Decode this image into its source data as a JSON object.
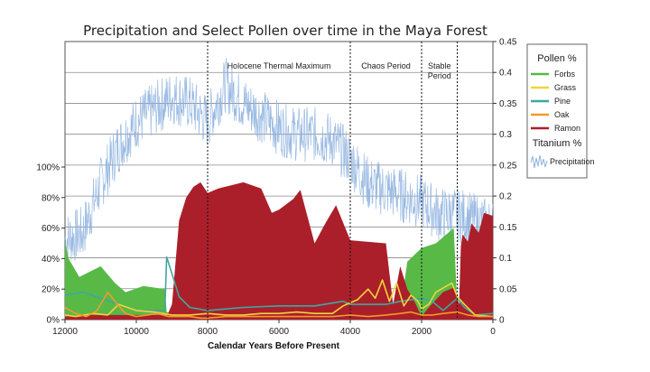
{
  "chart_data": {
    "type": "area",
    "title": "Precipitation and Select Pollen over time in the Maya Forest",
    "xlabel": "Calendar Years Before Present",
    "x_reversed": true,
    "xlim": [
      12000,
      0
    ],
    "x_ticks": [
      12000,
      10000,
      8000,
      6000,
      4000,
      2000,
      0
    ],
    "x_tick_labels": [
      "12000",
      "10000",
      "8000",
      "6000",
      "4000",
      "2000",
      "0"
    ],
    "y_left": {
      "lim": [
        0,
        100
      ],
      "ticks": [
        0,
        20,
        40,
        60,
        80,
        100
      ],
      "tick_labels": [
        "0%",
        "20%",
        "40%",
        "60%",
        "80%",
        "100%"
      ]
    },
    "y_right": {
      "lim": [
        0,
        0.45
      ],
      "ticks": [
        0,
        0.05,
        0.1,
        0.15,
        0.2,
        0.25,
        0.3,
        0.35,
        0.4,
        0.45
      ],
      "tick_labels": [
        "0",
        "0.05",
        "0.1",
        "0.15",
        "0.2",
        "0.25",
        "0.3",
        "0.35",
        "0.4",
        "0.45"
      ]
    },
    "grid": "horizontal",
    "periods": [
      {
        "label": "Holocene Thermal Maximum",
        "start": 8000,
        "end": 4000,
        "label_lines": [
          "Holocene Thermal Maximum"
        ]
      },
      {
        "label": "Chaos Period",
        "start": 4000,
        "end": 2000,
        "label_lines": [
          "Chaos Period"
        ]
      },
      {
        "label": "Stable Period",
        "start": 2000,
        "end": 1000,
        "label_lines": [
          "Stable",
          "Period"
        ]
      }
    ],
    "legend": {
      "position": "right",
      "pollen_title": "Pollen %",
      "titanium_title": "Titanium %",
      "items": [
        {
          "name": "Forbs",
          "color": "#58b947"
        },
        {
          "name": "Grass",
          "color": "#f3d33a"
        },
        {
          "name": "Pine",
          "color": "#3fa7a0"
        },
        {
          "name": "Oak",
          "color": "#f29a2a"
        },
        {
          "name": "Ramon",
          "color": "#ab1f2b"
        }
      ],
      "precip_label": "Precipitation",
      "precip_color": "#8fb3df"
    },
    "series": [
      {
        "name": "Forbs",
        "axis": "left",
        "style": "area",
        "color": "#58b947",
        "x": [
          12000,
          11900,
          11600,
          11000,
          10600,
          10300,
          9800,
          9200,
          9150,
          8900,
          5000,
          4000,
          2900,
          2600,
          2400,
          2000,
          1600,
          1100,
          1000,
          950
        ],
        "y": [
          51,
          40,
          28,
          35,
          24,
          18,
          22,
          20,
          5,
          3,
          2,
          3,
          4,
          5,
          38,
          47,
          50,
          60,
          8,
          2
        ]
      },
      {
        "name": "Ramon",
        "axis": "left",
        "style": "area",
        "color": "#ab1f2b",
        "x": [
          12000,
          11500,
          11000,
          10000,
          9300,
          9150,
          9000,
          8800,
          8600,
          8400,
          8200,
          8000,
          7700,
          7000,
          6500,
          6200,
          6000,
          5600,
          5400,
          5000,
          4700,
          4400,
          4000,
          3000,
          2800,
          2600,
          2400,
          2200,
          2000,
          1800,
          1400,
          1100,
          950,
          900,
          850,
          700,
          600,
          400,
          250,
          0
        ],
        "y": [
          2,
          3,
          3,
          3,
          3,
          2,
          10,
          65,
          80,
          87,
          90,
          83,
          86,
          90,
          86,
          70,
          72,
          79,
          85,
          50,
          63,
          75,
          52,
          50,
          10,
          35,
          20,
          12,
          2,
          8,
          18,
          21,
          10,
          48,
          56,
          51,
          63,
          57,
          70,
          68
        ]
      },
      {
        "name": "Pine",
        "axis": "left",
        "style": "line",
        "color": "#3fa7a0",
        "x": [
          12000,
          11500,
          11000,
          10500,
          10000,
          9500,
          9200,
          9150,
          9000,
          8800,
          8500,
          8000,
          7500,
          7000,
          6000,
          5000,
          4200,
          4000,
          3000,
          2600,
          2000,
          1700,
          1400,
          1000,
          800,
          500,
          0
        ],
        "y": [
          16,
          18,
          14,
          10,
          6,
          6,
          6,
          41,
          30,
          15,
          8,
          6,
          7,
          8,
          9,
          9,
          12,
          10,
          10,
          12,
          14,
          12,
          6,
          14,
          8,
          3,
          4
        ]
      },
      {
        "name": "Grass",
        "axis": "left",
        "style": "line",
        "color": "#f3d33a",
        "x": [
          12000,
          11700,
          11200,
          10800,
          10500,
          10000,
          9500,
          9000,
          8500,
          8000,
          7500,
          7000,
          6500,
          6000,
          5500,
          5000,
          4500,
          4200,
          3800,
          3500,
          3300,
          3100,
          2900,
          2700,
          2500,
          2300,
          2100,
          2000,
          1800,
          1600,
          1300,
          1150,
          1000,
          800,
          500,
          0
        ],
        "y": [
          3,
          2,
          4,
          3,
          10,
          6,
          5,
          3,
          3,
          4,
          3,
          3,
          4,
          4,
          5,
          4,
          4,
          9,
          13,
          20,
          14,
          26,
          12,
          24,
          9,
          16,
          12,
          7,
          10,
          18,
          22,
          24,
          15,
          10,
          3,
          2
        ]
      },
      {
        "name": "Oak",
        "axis": "left",
        "style": "line",
        "color": "#f29a2a",
        "x": [
          12000,
          11700,
          11400,
          11100,
          10800,
          10500,
          10300,
          10000,
          9700,
          9400,
          9100,
          8800,
          8500,
          8200,
          8000,
          7500,
          7000,
          6500,
          6000,
          5500,
          5000,
          4500,
          4000,
          3500,
          3000,
          2600,
          2300,
          2000,
          1700,
          1400,
          1000,
          700,
          400,
          0
        ],
        "y": [
          8,
          4,
          2,
          6,
          18,
          9,
          4,
          2,
          3,
          4,
          2,
          2,
          2,
          1,
          1,
          2,
          2,
          2,
          2,
          2,
          2,
          2,
          3,
          2,
          3,
          4,
          5,
          3,
          3,
          4,
          5,
          3,
          2,
          2
        ]
      }
    ],
    "precipitation": {
      "name": "Precipitation",
      "axis": "right",
      "style": "noisy-line",
      "color": "#8fb3df",
      "x": [
        12000,
        11500,
        11000,
        10500,
        10000,
        9500,
        9000,
        8500,
        8000,
        7500,
        7000,
        6500,
        6000,
        5500,
        5000,
        4500,
        4000,
        3500,
        3000,
        2500,
        2000,
        1500,
        1000,
        500,
        0
      ],
      "y": [
        0.13,
        0.14,
        0.22,
        0.28,
        0.32,
        0.34,
        0.36,
        0.35,
        0.32,
        0.38,
        0.35,
        0.33,
        0.31,
        0.3,
        0.3,
        0.29,
        0.26,
        0.22,
        0.21,
        0.2,
        0.19,
        0.17,
        0.17,
        0.16,
        0.15
      ]
    }
  }
}
